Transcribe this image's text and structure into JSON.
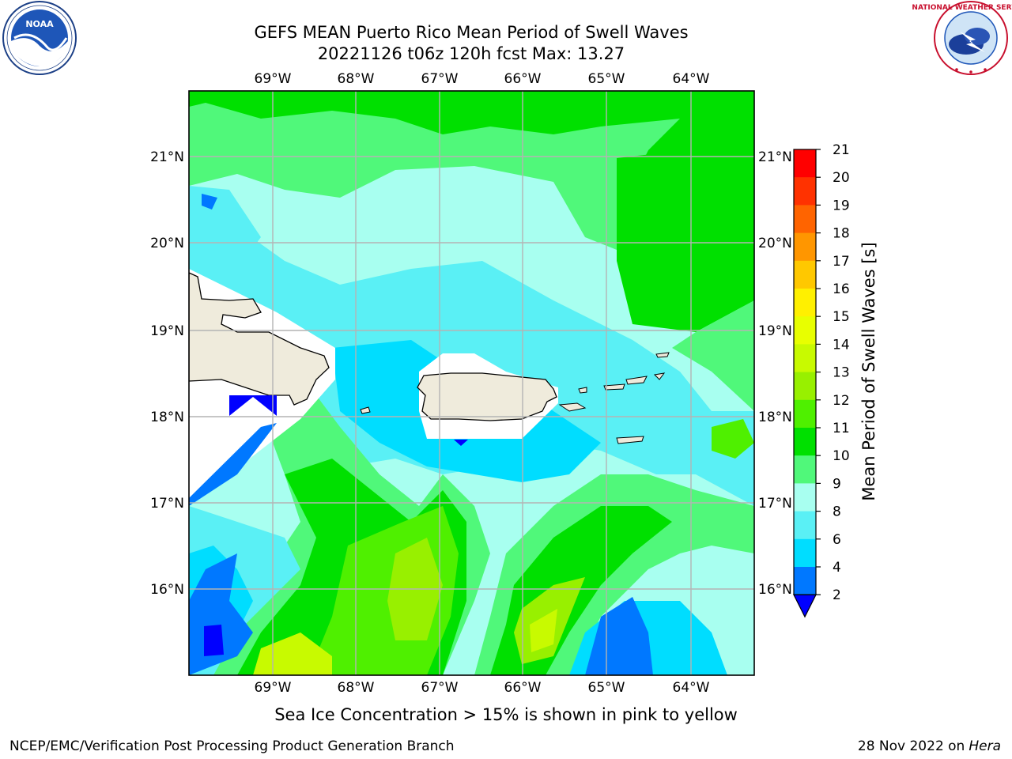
{
  "title": {
    "line1": "GEFS MEAN Puerto Rico Mean Period of Swell Waves",
    "line2": "20221126 t06z 120h fcst   Max: 13.27"
  },
  "logos": {
    "left": "NOAA",
    "left_ring_text": "NATIONAL OCEANIC AND ATMOSPHERIC ADMINISTRATION · U.S. DEPARTMENT OF COMMERCE",
    "right_ring_text": "NATIONAL WEATHER SERVICE"
  },
  "map": {
    "lon_labels": [
      "69°W",
      "68°W",
      "67°W",
      "66°W",
      "65°W",
      "64°W"
    ],
    "lat_labels": [
      "21°N",
      "20°N",
      "19°N",
      "18°N",
      "17°N",
      "16°N"
    ],
    "grid": true
  },
  "colorbar": {
    "label": "Mean Period of Swell Waves [s]",
    "ticks": [
      "21",
      "20",
      "19",
      "18",
      "17",
      "16",
      "15",
      "14",
      "13",
      "12",
      "11",
      "10",
      "9",
      "8",
      "6",
      "4",
      "2"
    ],
    "colors": {
      "c2_4": "#0078ff",
      "c4_6": "#00ddff",
      "c6_8": "#5af0f5",
      "c8_9": "#a8fff0",
      "c9_10": "#50f87a",
      "c10_11": "#00e000",
      "c11_12": "#4ff000",
      "c12_13": "#98f000",
      "c13_14": "#c8fa00",
      "c14_15": "#e8ff00",
      "c15_16": "#fff000",
      "c16_17": "#ffc800",
      "c17_18": "#ff9600",
      "c18_19": "#ff6400",
      "c19_20": "#ff3200",
      "c20_21": "#ff0000",
      "under": "#0000ff",
      "land": "#efebdc"
    }
  },
  "chart_data": {
    "type": "heatmap",
    "title": "GEFS MEAN Puerto Rico Mean Period of Swell Waves",
    "subtitle": "20221126 t06z 120h fcst   Max: 13.27",
    "xlabel": "",
    "ylabel": "",
    "xlim_lon": [
      -70.0,
      -63.25
    ],
    "ylim_lat": [
      15.0,
      21.75
    ],
    "variable": "Mean Period of Swell Waves [s]",
    "max": 13.27,
    "levels": [
      2,
      4,
      6,
      8,
      9,
      10,
      11,
      12,
      13,
      14,
      15,
      16,
      17,
      18,
      19,
      20,
      21
    ]
  },
  "footer": {
    "note": "Sea Ice Concentration > 15% is shown in pink to yellow",
    "branch": "NCEP/EMC/Verification Post Processing Product Generation Branch",
    "date": "28 Nov 2022 on",
    "machine": "Hera"
  }
}
